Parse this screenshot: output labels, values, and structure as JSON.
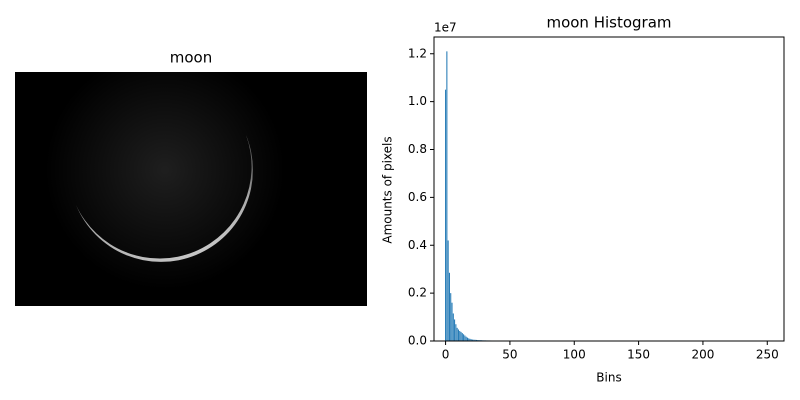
{
  "chart_data": [
    {
      "type": "image",
      "title": "moon"
    },
    {
      "type": "bar",
      "title": "moon Histogram",
      "x_label": "Bins",
      "y_label": "Amounts of pixels",
      "y_offset_label": "1e7",
      "color": "#1f77b4",
      "x": [
        0,
        1,
        2,
        3,
        4,
        5,
        6,
        7,
        8,
        9,
        10,
        11,
        12,
        13,
        14,
        15,
        16,
        17,
        18,
        19,
        20,
        21,
        22,
        23,
        24,
        25,
        26,
        27,
        28,
        29,
        30,
        31,
        32,
        33,
        34,
        35,
        36,
        37,
        38,
        39,
        40,
        41,
        42,
        43,
        44,
        45,
        46,
        47,
        48,
        49,
        50,
        51,
        52,
        53,
        54,
        55,
        56,
        57,
        58,
        59,
        60,
        61,
        62,
        63,
        64,
        65,
        66,
        67,
        68,
        69,
        70,
        71,
        72,
        73,
        74,
        75,
        76,
        77,
        78,
        79,
        80,
        81,
        82,
        83,
        84,
        85,
        86,
        87,
        88,
        89,
        90,
        91,
        92,
        93,
        94,
        95,
        96,
        97,
        98,
        99,
        100,
        101,
        102,
        103,
        104,
        105,
        106,
        107,
        108,
        109,
        110,
        111,
        112,
        113,
        114,
        115,
        116,
        117,
        118,
        119,
        120,
        121,
        122,
        123,
        124,
        125,
        126,
        127,
        128,
        129,
        130,
        131,
        132,
        133,
        134,
        135,
        136,
        137,
        138,
        139,
        140,
        141,
        142,
        143,
        144,
        145,
        146,
        147,
        148,
        149,
        150,
        151,
        152,
        153,
        154,
        155,
        156,
        157,
        158,
        159,
        160,
        161,
        162,
        163,
        164,
        165,
        166,
        167,
        168,
        169,
        170,
        171,
        172,
        173,
        174,
        175,
        176,
        177,
        178,
        179,
        180,
        181,
        182,
        183,
        184,
        185,
        186,
        187,
        188,
        189,
        190,
        191,
        192,
        193,
        194,
        195,
        196,
        197,
        198,
        199,
        200,
        201,
        202,
        203,
        204,
        205,
        206,
        207,
        208,
        209,
        210,
        211,
        212,
        213,
        214,
        215,
        216,
        217,
        218,
        219,
        220,
        221,
        222,
        223,
        224,
        225,
        226,
        227,
        228,
        229,
        230,
        231,
        232,
        233,
        234,
        235,
        236,
        237,
        238,
        239,
        240,
        241,
        242,
        243,
        244,
        245,
        246,
        247,
        248,
        249,
        250,
        251,
        252,
        253,
        254,
        255
      ],
      "values": [
        10500000,
        12100000,
        4200000,
        2850000,
        2000000,
        1600000,
        1150000,
        900000,
        700000,
        550000,
        480000,
        420000,
        380000,
        330000,
        280000,
        230000,
        180000,
        140000,
        110000,
        90000,
        70000,
        60000,
        55000,
        50000,
        45000,
        40000,
        38000,
        35000,
        33000,
        30000,
        28000,
        26000,
        25000,
        24000,
        23000,
        22000,
        21000,
        20000,
        20000,
        19000,
        19000,
        18000,
        18000,
        17000,
        17000,
        16000,
        16000,
        16000,
        15000,
        15000,
        15000,
        15000,
        15000,
        15000,
        15000,
        15000,
        15000,
        15000,
        15000,
        15000,
        15000,
        15000,
        15000,
        15000,
        15000,
        15000,
        15000,
        15000,
        15000,
        15000,
        15000,
        15000,
        15000,
        15000,
        15000,
        15000,
        15000,
        15000,
        15000,
        15000,
        14000,
        14000,
        14000,
        14000,
        14000,
        14000,
        14000,
        14000,
        14000,
        14000,
        14000,
        14000,
        14000,
        14000,
        14000,
        14000,
        14000,
        14000,
        14000,
        14000,
        14000,
        14000,
        14000,
        14000,
        15000,
        15000,
        15000,
        15000,
        15000,
        15000,
        15000,
        15000,
        18000,
        18000,
        18000,
        18000,
        18000,
        18000,
        18000,
        18000,
        18000,
        18000,
        18000,
        18000,
        18000,
        18000,
        18000,
        18000,
        20000,
        20000,
        20000,
        20000,
        20000,
        20000,
        20000,
        20000,
        20000,
        20000,
        20000,
        20000,
        20000,
        20000,
        20000,
        20000,
        20000,
        20000,
        20000,
        20000,
        20000,
        20000,
        20000,
        20000,
        20000,
        20000,
        20000,
        20000,
        20000,
        20000,
        20000,
        20000,
        16000,
        16000,
        16000,
        16000,
        16000,
        16000,
        16000,
        16000,
        16000,
        16000,
        16000,
        16000,
        16000,
        16000,
        16000,
        16000,
        18000,
        18000,
        18000,
        18000,
        18000,
        18000,
        18000,
        18000,
        18000,
        18000,
        18000,
        18000,
        18000,
        18000,
        18000,
        18000,
        6000,
        6000,
        6000,
        6000,
        6000,
        6000,
        6000,
        6000,
        6000,
        6000,
        6000,
        6000,
        6000,
        6000,
        6000,
        6000,
        4000,
        4000,
        4000,
        4000,
        4000,
        4000,
        4000,
        4000,
        4000,
        4000,
        4000,
        4000,
        4000,
        4000,
        4000,
        4000,
        3000,
        3000,
        3000,
        3000,
        3000,
        3000,
        3000,
        3000,
        3000,
        3000,
        3000,
        3000,
        3000,
        3000,
        3000,
        3000,
        2000,
        2000,
        2000,
        2000,
        2000,
        2000,
        2000,
        2000,
        2000,
        2000,
        2000,
        2000,
        2000,
        2000,
        2000,
        2000
      ],
      "xlim": [
        -9,
        263
      ],
      "ylim": [
        0,
        12700000
      ],
      "xticks": [
        0,
        50,
        100,
        150,
        200,
        250
      ],
      "yticks": [
        {
          "value": 0,
          "label": "0.0"
        },
        {
          "value": 2000000,
          "label": "0.2"
        },
        {
          "value": 4000000,
          "label": "0.4"
        },
        {
          "value": 6000000,
          "label": "0.6"
        },
        {
          "value": 8000000,
          "label": "0.8"
        },
        {
          "value": 10000000,
          "label": "1.0"
        },
        {
          "value": 12000000,
          "label": "1.2"
        }
      ]
    }
  ]
}
